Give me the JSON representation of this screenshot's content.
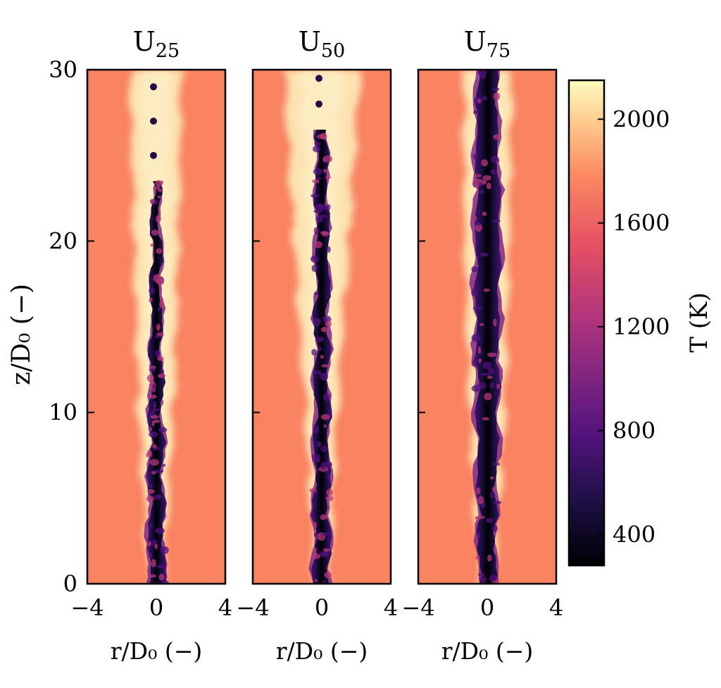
{
  "figure": {
    "shared_ylabel": "z/D₀ (−)",
    "shared_xlabel": "r/D₀ (−)"
  },
  "chart_data": {
    "type": "heatmap",
    "description_units": "temperature field, Kelvin",
    "colormap": "magma",
    "colorbar": {
      "label": "T (K)",
      "range": [
        280,
        2150
      ],
      "ticks": [
        400,
        800,
        1200,
        1600,
        2000
      ],
      "tick_labels": [
        "400",
        "800",
        "1200",
        "1600",
        "2000"
      ],
      "stops": [
        {
          "t": 0.0,
          "color": "#000004"
        },
        {
          "t": 0.13,
          "color": "#1c1044"
        },
        {
          "t": 0.26,
          "color": "#4f127b"
        },
        {
          "t": 0.39,
          "color": "#812581"
        },
        {
          "t": 0.52,
          "color": "#b5367a"
        },
        {
          "t": 0.66,
          "color": "#e55064"
        },
        {
          "t": 0.8,
          "color": "#fb8761"
        },
        {
          "t": 0.9,
          "color": "#fec287"
        },
        {
          "t": 1.0,
          "color": "#fcfdbf"
        }
      ]
    },
    "x_axis": {
      "label": "r/D₀ (−)",
      "range": [
        -4,
        4
      ],
      "ticks": [
        -4,
        0,
        4
      ],
      "tick_labels": [
        "−4",
        "0",
        "4"
      ]
    },
    "y_axis": {
      "label": "z/D₀ (−)",
      "range": [
        0,
        30
      ],
      "ticks": [
        0,
        10,
        20,
        30
      ],
      "tick_labels": [
        "0",
        "10",
        "20",
        "30"
      ]
    },
    "ambient_temperature_K": 1750,
    "panels": [
      {
        "title_base": "U",
        "title_sub": "25",
        "flame_sheath_halfwidth": {
          "z": [
            0,
            10,
            20,
            30
          ],
          "r": [
            0.4,
            1.0,
            1.3,
            1.5
          ]
        },
        "cold_core_halfwidth": {
          "z": [
            0,
            10,
            20,
            23,
            30
          ],
          "r": [
            0.45,
            0.35,
            0.25,
            0.18,
            0.12
          ]
        },
        "cold_core_top_z": 23.5,
        "cold_blobs_z": [
          25.0,
          27.0,
          29.0
        ]
      },
      {
        "title_base": "U",
        "title_sub": "50",
        "flame_sheath_halfwidth": {
          "z": [
            0,
            10,
            20,
            30
          ],
          "r": [
            0.4,
            0.9,
            1.6,
            2.2
          ]
        },
        "cold_core_halfwidth": {
          "z": [
            0,
            10,
            20,
            26,
            30
          ],
          "r": [
            0.45,
            0.4,
            0.35,
            0.3,
            0.15
          ]
        },
        "cold_core_top_z": 26.5,
        "cold_blobs_z": [
          28.0,
          29.5
        ]
      },
      {
        "title_base": "U",
        "title_sub": "75",
        "flame_sheath_halfwidth": {
          "z": [
            0,
            10,
            20,
            30
          ],
          "r": [
            0.35,
            1.0,
            1.3,
            1.4
          ]
        },
        "cold_core_halfwidth": {
          "z": [
            0,
            10,
            20,
            30
          ],
          "r": [
            0.45,
            0.6,
            0.7,
            0.55
          ]
        },
        "cold_core_top_z": 30,
        "cold_blobs_z": []
      }
    ]
  }
}
